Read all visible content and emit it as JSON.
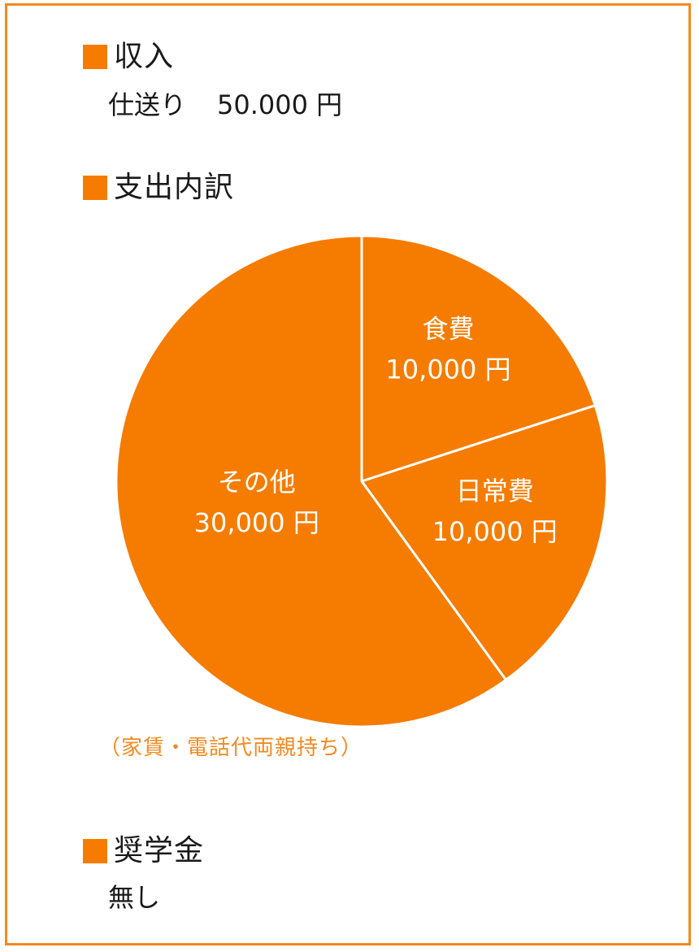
{
  "colors": {
    "accent": "#f57c00",
    "border": "#f28a1f",
    "note": "#f28a1f",
    "pie_stroke": "#ffffff"
  },
  "income": {
    "heading": "収入",
    "label": "仕送り",
    "amount": "50.000 円"
  },
  "expense": {
    "heading": "支出内訳",
    "note": "（家賃・電話代両親持ち）"
  },
  "scholarship": {
    "heading": "奨学金",
    "value": "無し"
  },
  "chart_data": {
    "type": "pie",
    "unit": "円",
    "slices": [
      {
        "name": "食費",
        "value": 10000,
        "label": "10,000 円"
      },
      {
        "name": "日常費",
        "value": 10000,
        "label": "10,000 円"
      },
      {
        "name": "その他",
        "value": 30000,
        "label": "30,000 円"
      }
    ],
    "start_angle_deg": 0,
    "direction": "clockwise"
  }
}
